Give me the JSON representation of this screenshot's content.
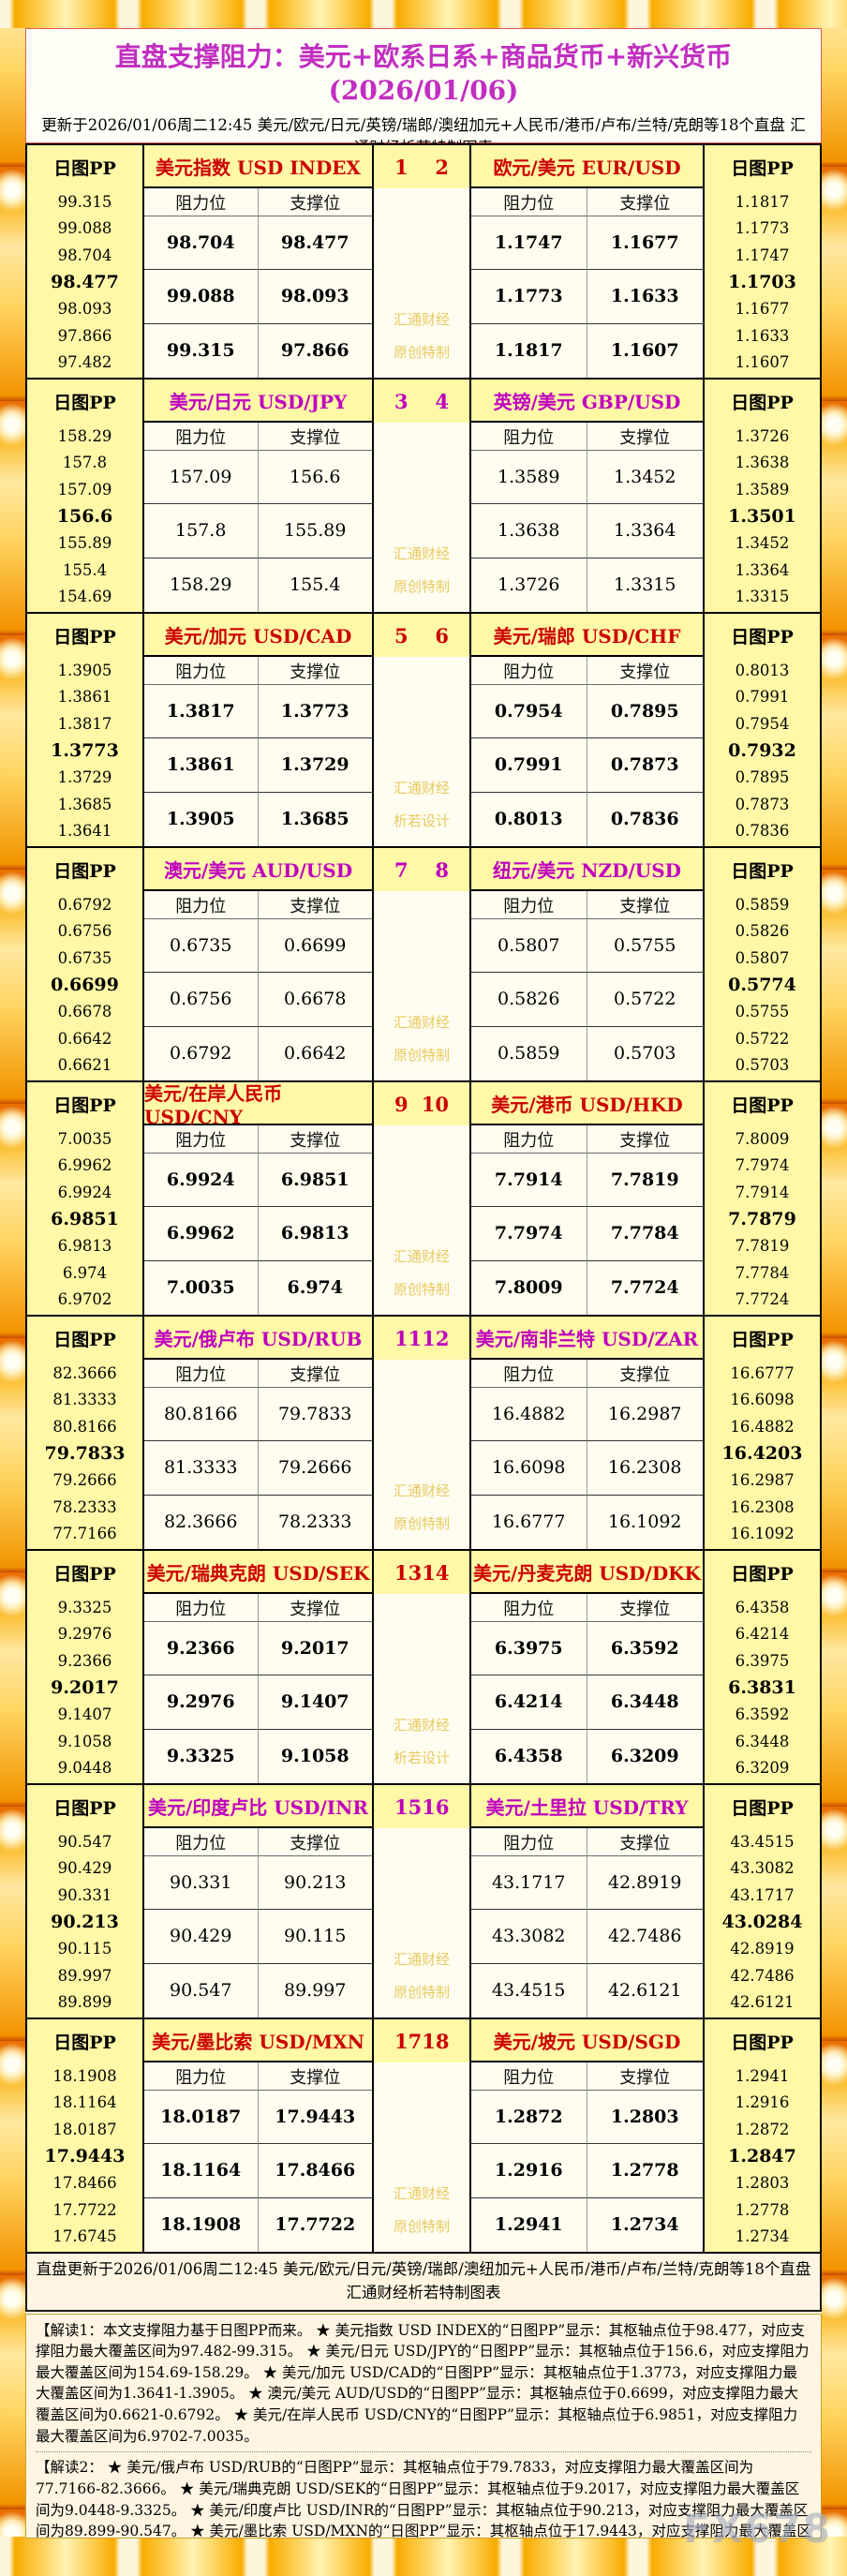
{
  "header": {
    "title": "直盘支撑阻力：美元+欧系日系+商品货币+新兴货币(2026/01/06)",
    "subtitle": "更新于2026/01/06周二12:45 美元/欧元/日元/英镑/瑞郎/澳纽加元+人民币/港币/卢布/兰特/克朗等18个直盘 汇通财经析若特制图表"
  },
  "labels": {
    "pp_header": "日图PP",
    "resistance": "阻力位",
    "support": "支撑位"
  },
  "colors": {
    "red": "#CC0000",
    "magenta": "#BF00BF",
    "title": "#C12EC1",
    "pp_bg": "#FFF8A6",
    "cell_bg": "#FFFDF0",
    "watermark": "#E8C95F",
    "border_gold": "#F7A600"
  },
  "blocks": [
    {
      "nums": [
        "1",
        "2"
      ],
      "theme": "red",
      "watermark": [
        "汇通财经",
        "原创特制"
      ],
      "left": {
        "title": "美元指数 USD INDEX",
        "pp": [
          "99.315",
          "99.088",
          "98.704",
          "98.477",
          "98.093",
          "97.866",
          "97.482"
        ],
        "rows": [
          [
            "98.704",
            "98.477"
          ],
          [
            "99.088",
            "98.093"
          ],
          [
            "99.315",
            "97.866"
          ]
        ]
      },
      "right": {
        "title": "欧元/美元 EUR/USD",
        "pp": [
          "1.1817",
          "1.1773",
          "1.1747",
          "1.1703",
          "1.1677",
          "1.1633",
          "1.1607"
        ],
        "rows": [
          [
            "1.1747",
            "1.1677"
          ],
          [
            "1.1773",
            "1.1633"
          ],
          [
            "1.1817",
            "1.1607"
          ]
        ]
      }
    },
    {
      "nums": [
        "3",
        "4"
      ],
      "theme": "magenta",
      "watermark": [
        "汇通财经",
        "原创特制"
      ],
      "left": {
        "title": "美元/日元 USD/JPY",
        "pp": [
          "158.29",
          "157.8",
          "157.09",
          "156.6",
          "155.89",
          "155.4",
          "154.69"
        ],
        "rows": [
          [
            "157.09",
            "156.6"
          ],
          [
            "157.8",
            "155.89"
          ],
          [
            "158.29",
            "155.4"
          ]
        ]
      },
      "right": {
        "title": "英镑/美元 GBP/USD",
        "pp": [
          "1.3726",
          "1.3638",
          "1.3589",
          "1.3501",
          "1.3452",
          "1.3364",
          "1.3315"
        ],
        "rows": [
          [
            "1.3589",
            "1.3452"
          ],
          [
            "1.3638",
            "1.3364"
          ],
          [
            "1.3726",
            "1.3315"
          ]
        ]
      }
    },
    {
      "nums": [
        "5",
        "6"
      ],
      "theme": "red",
      "watermark": [
        "汇通财经",
        "析若设计"
      ],
      "left": {
        "title": "美元/加元 USD/CAD",
        "pp": [
          "1.3905",
          "1.3861",
          "1.3817",
          "1.3773",
          "1.3729",
          "1.3685",
          "1.3641"
        ],
        "rows": [
          [
            "1.3817",
            "1.3773"
          ],
          [
            "1.3861",
            "1.3729"
          ],
          [
            "1.3905",
            "1.3685"
          ]
        ]
      },
      "right": {
        "title": "美元/瑞郎 USD/CHF",
        "pp": [
          "0.8013",
          "0.7991",
          "0.7954",
          "0.7932",
          "0.7895",
          "0.7873",
          "0.7836"
        ],
        "rows": [
          [
            "0.7954",
            "0.7895"
          ],
          [
            "0.7991",
            "0.7873"
          ],
          [
            "0.8013",
            "0.7836"
          ]
        ]
      }
    },
    {
      "nums": [
        "7",
        "8"
      ],
      "theme": "magenta",
      "watermark": [
        "汇通财经",
        "原创特制"
      ],
      "left": {
        "title": "澳元/美元 AUD/USD",
        "pp": [
          "0.6792",
          "0.6756",
          "0.6735",
          "0.6699",
          "0.6678",
          "0.6642",
          "0.6621"
        ],
        "rows": [
          [
            "0.6735",
            "0.6699"
          ],
          [
            "0.6756",
            "0.6678"
          ],
          [
            "0.6792",
            "0.6642"
          ]
        ]
      },
      "right": {
        "title": "纽元/美元 NZD/USD",
        "pp": [
          "0.5859",
          "0.5826",
          "0.5807",
          "0.5774",
          "0.5755",
          "0.5722",
          "0.5703"
        ],
        "rows": [
          [
            "0.5807",
            "0.5755"
          ],
          [
            "0.5826",
            "0.5722"
          ],
          [
            "0.5859",
            "0.5703"
          ]
        ]
      }
    },
    {
      "nums": [
        "9",
        "10"
      ],
      "theme": "red",
      "watermark": [
        "汇通财经",
        "原创特制"
      ],
      "left": {
        "title": "美元/在岸人民币 USD/CNY",
        "pp": [
          "7.0035",
          "6.9962",
          "6.9924",
          "6.9851",
          "6.9813",
          "6.974",
          "6.9702"
        ],
        "rows": [
          [
            "6.9924",
            "6.9851"
          ],
          [
            "6.9962",
            "6.9813"
          ],
          [
            "7.0035",
            "6.974"
          ]
        ]
      },
      "right": {
        "title": "美元/港币 USD/HKD",
        "pp": [
          "7.8009",
          "7.7974",
          "7.7914",
          "7.7879",
          "7.7819",
          "7.7784",
          "7.7724"
        ],
        "rows": [
          [
            "7.7914",
            "7.7819"
          ],
          [
            "7.7974",
            "7.7784"
          ],
          [
            "7.8009",
            "7.7724"
          ]
        ]
      }
    },
    {
      "nums": [
        "11",
        "12"
      ],
      "theme": "magenta",
      "watermark": [
        "汇通财经",
        "原创特制"
      ],
      "left": {
        "title": "美元/俄卢布 USD/RUB",
        "pp": [
          "82.3666",
          "81.3333",
          "80.8166",
          "79.7833",
          "79.2666",
          "78.2333",
          "77.7166"
        ],
        "rows": [
          [
            "80.8166",
            "79.7833"
          ],
          [
            "81.3333",
            "79.2666"
          ],
          [
            "82.3666",
            "78.2333"
          ]
        ]
      },
      "right": {
        "title": "美元/南非兰特 USD/ZAR",
        "pp": [
          "16.6777",
          "16.6098",
          "16.4882",
          "16.4203",
          "16.2987",
          "16.2308",
          "16.1092"
        ],
        "rows": [
          [
            "16.4882",
            "16.2987"
          ],
          [
            "16.6098",
            "16.2308"
          ],
          [
            "16.6777",
            "16.1092"
          ]
        ]
      }
    },
    {
      "nums": [
        "13",
        "14"
      ],
      "theme": "red",
      "watermark": [
        "汇通财经",
        "析若设计"
      ],
      "left": {
        "title": "美元/瑞典克朗 USD/SEK",
        "pp": [
          "9.3325",
          "9.2976",
          "9.2366",
          "9.2017",
          "9.1407",
          "9.1058",
          "9.0448"
        ],
        "rows": [
          [
            "9.2366",
            "9.2017"
          ],
          [
            "9.2976",
            "9.1407"
          ],
          [
            "9.3325",
            "9.1058"
          ]
        ]
      },
      "right": {
        "title": "美元/丹麦克朗 USD/DKK",
        "pp": [
          "6.4358",
          "6.4214",
          "6.3975",
          "6.3831",
          "6.3592",
          "6.3448",
          "6.3209"
        ],
        "rows": [
          [
            "6.3975",
            "6.3592"
          ],
          [
            "6.4214",
            "6.3448"
          ],
          [
            "6.4358",
            "6.3209"
          ]
        ]
      }
    },
    {
      "nums": [
        "15",
        "16"
      ],
      "theme": "magenta",
      "watermark": [
        "汇通财经",
        "原创特制"
      ],
      "left": {
        "title": "美元/印度卢比 USD/INR",
        "pp": [
          "90.547",
          "90.429",
          "90.331",
          "90.213",
          "90.115",
          "89.997",
          "89.899"
        ],
        "rows": [
          [
            "90.331",
            "90.213"
          ],
          [
            "90.429",
            "90.115"
          ],
          [
            "90.547",
            "89.997"
          ]
        ]
      },
      "right": {
        "title": "美元/土里拉 USD/TRY",
        "pp": [
          "43.4515",
          "43.3082",
          "43.1717",
          "43.0284",
          "42.8919",
          "42.7486",
          "42.6121"
        ],
        "rows": [
          [
            "43.1717",
            "42.8919"
          ],
          [
            "43.3082",
            "42.7486"
          ],
          [
            "43.4515",
            "42.6121"
          ]
        ]
      }
    },
    {
      "nums": [
        "17",
        "18"
      ],
      "theme": "red",
      "watermark": [
        "汇通财经",
        "原创特制"
      ],
      "left": {
        "title": "美元/墨比索 USD/MXN",
        "pp": [
          "18.1908",
          "18.1164",
          "18.0187",
          "17.9443",
          "17.8466",
          "17.7722",
          "17.6745"
        ],
        "rows": [
          [
            "18.0187",
            "17.9443"
          ],
          [
            "18.1164",
            "17.8466"
          ],
          [
            "18.1908",
            "17.7722"
          ]
        ]
      },
      "right": {
        "title": "美元/坡元 USD/SGD",
        "pp": [
          "1.2941",
          "1.2916",
          "1.2872",
          "1.2847",
          "1.2803",
          "1.2778",
          "1.2734"
        ],
        "rows": [
          [
            "1.2872",
            "1.2803"
          ],
          [
            "1.2916",
            "1.2778"
          ],
          [
            "1.2941",
            "1.2734"
          ]
        ]
      }
    }
  ],
  "footer": {
    "bar": "直盘更新于2026/01/06周二12:45 美元/欧元/日元/英镑/瑞郎/澳纽加元+人民币/港币/卢布/兰特/克朗等18个直盘 汇通财经析若特制图表",
    "notes": [
      "【解读1：本文支撑阻力基于日图PP而来。 ★ 美元指数 USD INDEX的“日图PP”显示：其枢轴点位于98.477，对应支撑阻力最大覆盖区间为97.482-99.315。 ★ 美元/日元 USD/JPY的“日图PP”显示：其枢轴点位于156.6，对应支撑阻力最大覆盖区间为154.69-158.29。 ★ 美元/加元 USD/CAD的“日图PP”显示：其枢轴点位于1.3773，对应支撑阻力最大覆盖区间为1.3641-1.3905。 ★ 澳元/美元 AUD/USD的“日图PP”显示：其枢轴点位于0.6699，对应支撑阻力最大覆盖区间为0.6621-0.6792。 ★ 美元/在岸人民币 USD/CNY的“日图PP”显示：其枢轴点位于6.9851，对应支撑阻力最大覆盖区间为6.9702-7.0035。",
      "【解读2： ★ 美元/俄卢布 USD/RUB的“日图PP”显示：其枢轴点位于79.7833，对应支撑阻力最大覆盖区间为77.7166-82.3666。 ★ 美元/瑞典克朗 USD/SEK的“日图PP”显示：其枢轴点位于9.2017，对应支撑阻力最大覆盖区间为9.0448-9.3325。 ★ 美元/印度卢比 USD/INR的“日图PP”显示：其枢轴点位于90.213，对应支撑阻力最大覆盖区间为89.899-90.547。 ★ 美元/墨比索 USD/MXN的“日图PP”显示：其枢轴点位于17.9443，对应支撑阻力最大覆盖区间为17.6745-18.1908。"
    ],
    "brand": "FX678"
  }
}
